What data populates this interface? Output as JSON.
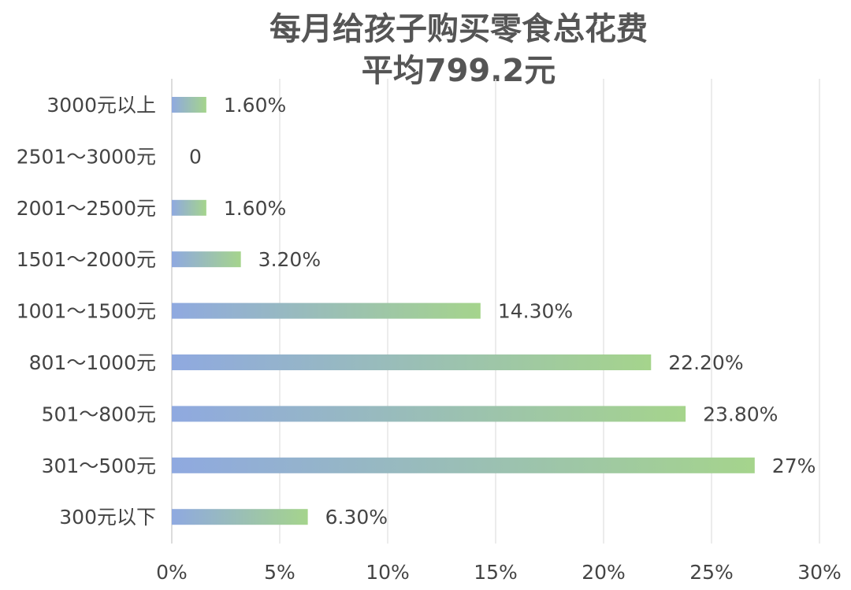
{
  "chart_data": {
    "type": "bar",
    "orientation": "horizontal",
    "title": "每月给孩子购买零食总花费",
    "subtitle": "平均799.2元",
    "categories": [
      "3000元以上",
      "2501～3000元",
      "2001～2500元",
      "1501～2000元",
      "1001～1500元",
      "801～1000元",
      "501～800元",
      "301～500元",
      "300元以下"
    ],
    "values": [
      1.6,
      0,
      1.6,
      3.2,
      14.3,
      22.2,
      23.8,
      27,
      6.3
    ],
    "value_labels": [
      "1.60%",
      "0",
      "1.60%",
      "3.20%",
      "14.30%",
      "22.20%",
      "23.80%",
      "27%",
      "6.30%"
    ],
    "xlim": [
      0,
      30
    ],
    "x_ticks": [
      "0%",
      "5%",
      "10%",
      "15%",
      "20%",
      "25%",
      "30%"
    ],
    "x_tick_values": [
      0,
      5,
      10,
      15,
      20,
      25,
      30
    ],
    "xlabel": "",
    "ylabel": "",
    "grid": true,
    "legend": "none",
    "colors": {
      "bar_start": "#8fa9e0",
      "bar_end": "#a5d48c"
    }
  }
}
